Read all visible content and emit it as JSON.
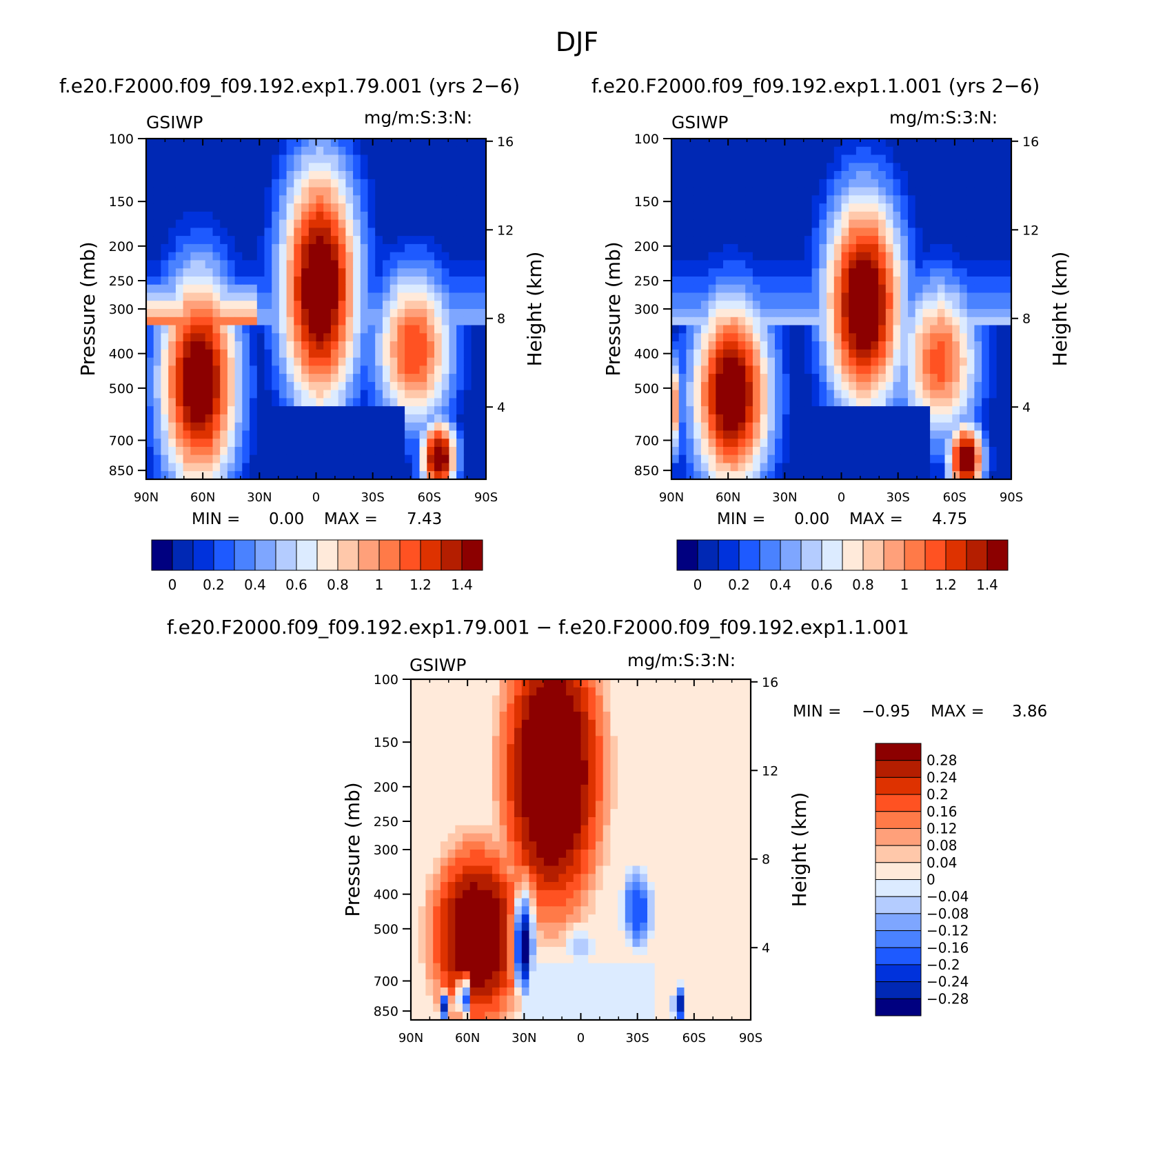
{
  "figure": {
    "title": "DJF",
    "colors": {
      "seq": [
        "#000080",
        "#0028b4",
        "#0032dc",
        "#1e5aff",
        "#4a82ff",
        "#7ea6ff",
        "#b4ccff",
        "#dcebff",
        "#ffeada",
        "#ffc8aa",
        "#ffa07a",
        "#ff7a48",
        "#ff5222",
        "#de3200",
        "#b41e00",
        "#8c0000"
      ],
      "div": [
        "#000080",
        "#0028b4",
        "#0032dc",
        "#1e5aff",
        "#4a82ff",
        "#7ea6ff",
        "#b4ccff",
        "#dcebff",
        "#ffeada",
        "#ffc8aa",
        "#ffa07a",
        "#ff7a48",
        "#ff5222",
        "#de3200",
        "#b41e00",
        "#8c0000"
      ]
    }
  },
  "chart_data": [
    {
      "type": "heatmap",
      "id": "panel1",
      "title": "f.e20.F2000.f09_f09.192.exp1.79.001 (yrs 2−6)",
      "variable": "GSIWP",
      "units": "mg/m:S:3:N:",
      "xlabel": "",
      "ylabel": "Pressure (mb)",
      "y2label": "Height (km)",
      "x_ticks": [
        "90N",
        "60N",
        "30N",
        "0",
        "30S",
        "60S",
        "90S"
      ],
      "x_tick_values": [
        90,
        60,
        30,
        0,
        -30,
        -60,
        -90
      ],
      "xlim": [
        90,
        -90
      ],
      "y_ticks": [
        100,
        150,
        200,
        250,
        300,
        400,
        500,
        700,
        850
      ],
      "ylim": [
        100,
        1000
      ],
      "y2_ticks": [
        16,
        12,
        8,
        4
      ],
      "stats": {
        "min_label": "MIN =",
        "min": "0.00",
        "max_label": "MAX =",
        "max": "7.43"
      },
      "colorbar": {
        "orientation": "horizontal",
        "labels": [
          "0",
          "0.2",
          "0.4",
          "0.6",
          "0.8",
          "1",
          "1.2",
          "1.4"
        ],
        "levels": [
          0,
          0.1,
          0.2,
          0.3,
          0.4,
          0.5,
          0.6,
          0.7,
          0.8,
          0.9,
          1.0,
          1.1,
          1.2,
          1.3,
          1.4
        ]
      },
      "features": [
        {
          "name": "nh-extratropical-maximum",
          "lat": [
            88,
            35
          ],
          "pressure": [
            260,
            880
          ],
          "value": ">1.4"
        },
        {
          "name": "tropical-upper-maximum",
          "lat": [
            25,
            -30
          ],
          "pressure": [
            105,
            560
          ],
          "value": ">1.4"
        },
        {
          "name": "sh-midlatitude-branch",
          "lat": [
            -30,
            -80
          ],
          "pressure": [
            260,
            620
          ],
          "value": "0.8-1.4"
        },
        {
          "name": "sh-lower-maximum",
          "lat": [
            -55,
            -75
          ],
          "pressure": [
            660,
            880
          ],
          "value": ">1.4"
        },
        {
          "name": "lower-tropical-minimum",
          "lat": [
            28,
            -45
          ],
          "pressure": [
            560,
            880
          ],
          "value": "0-0.1"
        }
      ]
    },
    {
      "type": "heatmap",
      "id": "panel2",
      "title": "f.e20.F2000.f09_f09.192.exp1.1.001 (yrs 2−6)",
      "variable": "GSIWP",
      "units": "mg/m:S:3:N:",
      "xlabel": "",
      "ylabel": "Pressure (mb)",
      "y2label": "Height (km)",
      "x_ticks": [
        "90N",
        "60N",
        "30N",
        "0",
        "30S",
        "60S",
        "90S"
      ],
      "x_tick_values": [
        90,
        60,
        30,
        0,
        -30,
        -60,
        -90
      ],
      "xlim": [
        90,
        -90
      ],
      "y_ticks": [
        100,
        150,
        200,
        250,
        300,
        400,
        500,
        700,
        850
      ],
      "ylim": [
        100,
        1000
      ],
      "y2_ticks": [
        16,
        12,
        8,
        4
      ],
      "stats": {
        "min_label": "MIN =",
        "min": "0.00",
        "max_label": "MAX =",
        "max": "4.75"
      },
      "colorbar": {
        "orientation": "horizontal",
        "labels": [
          "0",
          "0.2",
          "0.4",
          "0.6",
          "0.8",
          "1",
          "1.2",
          "1.4"
        ],
        "levels": [
          0,
          0.1,
          0.2,
          0.3,
          0.4,
          0.5,
          0.6,
          0.7,
          0.8,
          0.9,
          1.0,
          1.1,
          1.2,
          1.3,
          1.4
        ]
      },
      "features": [
        {
          "name": "nh-extratropical-maximum",
          "lat": [
            80,
            35
          ],
          "pressure": [
            300,
            880
          ],
          "value": ">1.4"
        },
        {
          "name": "tropical-upper-maximum",
          "lat": [
            15,
            -35
          ],
          "pressure": [
            150,
            560
          ],
          "value": ">1.4"
        },
        {
          "name": "sh-midlatitude-branch",
          "lat": [
            -30,
            -80
          ],
          "pressure": [
            300,
            620
          ],
          "value": "0.8-1.4"
        },
        {
          "name": "sh-lower-maximum",
          "lat": [
            -55,
            -75
          ],
          "pressure": [
            660,
            880
          ],
          "value": ">1.4"
        },
        {
          "name": "lower-tropical-minimum",
          "lat": [
            28,
            -45
          ],
          "pressure": [
            560,
            880
          ],
          "value": "0-0.1"
        }
      ]
    },
    {
      "type": "heatmap",
      "id": "panel3",
      "title": "f.e20.F2000.f09_f09.192.exp1.79.001 − f.e20.F2000.f09_f09.192.exp1.1.001",
      "variable": "GSIWP",
      "units": "mg/m:S:3:N:",
      "xlabel": "",
      "ylabel": "Pressure (mb)",
      "y2label": "Height (km)",
      "x_ticks": [
        "90N",
        "60N",
        "30N",
        "0",
        "30S",
        "60S",
        "90S"
      ],
      "x_tick_values": [
        90,
        60,
        30,
        0,
        -30,
        -60,
        -90
      ],
      "xlim": [
        90,
        -90
      ],
      "y_ticks": [
        100,
        150,
        200,
        250,
        300,
        400,
        500,
        700,
        850
      ],
      "ylim": [
        100,
        1000
      ],
      "y2_ticks": [
        16,
        12,
        8,
        4
      ],
      "stats": {
        "min_label": "MIN =",
        "min": "−0.95",
        "max_label": "MAX =",
        "max": "3.86"
      },
      "colorbar": {
        "orientation": "vertical",
        "labels": [
          "0.28",
          "0.24",
          "0.2",
          "0.16",
          "0.12",
          "0.08",
          "0.04",
          "0",
          "−0.04",
          "−0.08",
          "−0.12",
          "−0.16",
          "−0.2",
          "−0.24",
          "−0.28"
        ],
        "levels": [
          0.28,
          0.24,
          0.2,
          0.16,
          0.12,
          0.08,
          0.04,
          0,
          -0.04,
          -0.08,
          -0.12,
          -0.16,
          -0.2,
          -0.24,
          -0.28
        ]
      },
      "features": [
        {
          "name": "broad-positive-difference",
          "lat": [
            88,
            -60
          ],
          "pressure": [
            100,
            880
          ],
          "value": ">0.28"
        },
        {
          "name": "negative-lobe-30N",
          "lat": [
            40,
            20
          ],
          "pressure": [
            330,
            880
          ],
          "value": "<-0.28"
        },
        {
          "name": "negative-lobe-30S",
          "lat": [
            -15,
            -50
          ],
          "pressure": [
            310,
            620
          ],
          "value": "-0.28 to -0.08"
        },
        {
          "name": "lower-tropical-near-zero",
          "lat": [
            30,
            -40
          ],
          "pressure": [
            630,
            880
          ],
          "value": "-0.04-0"
        }
      ]
    }
  ]
}
